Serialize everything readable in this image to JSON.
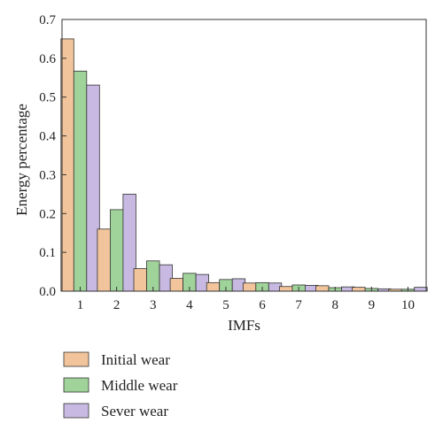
{
  "chart_data": {
    "type": "bar",
    "categories": [
      "1",
      "2",
      "3",
      "4",
      "5",
      "6",
      "7",
      "8",
      "9",
      "10"
    ],
    "series": [
      {
        "name": "Initial wear",
        "color": "#f2c49b",
        "values": [
          0.65,
          0.16,
          0.058,
          0.033,
          0.022,
          0.021,
          0.012,
          0.014,
          0.01,
          0.005
        ]
      },
      {
        "name": "Middle wear",
        "color": "#9fd39a",
        "values": [
          0.567,
          0.21,
          0.078,
          0.046,
          0.03,
          0.022,
          0.016,
          0.009,
          0.007,
          0.005
        ]
      },
      {
        "name": "Sever wear",
        "color": "#c7b9e2",
        "values": [
          0.531,
          0.25,
          0.068,
          0.043,
          0.032,
          0.021,
          0.015,
          0.011,
          0.006,
          0.01
        ]
      }
    ],
    "xlabel": "IMFs",
    "ylabel": "Energy percentage",
    "ylim": [
      0,
      0.7
    ],
    "yticks": [
      "0.0",
      "0.1",
      "0.2",
      "0.3",
      "0.4",
      "0.5",
      "0.6",
      "0.7"
    ],
    "grid": false,
    "legend_position": "bottom-left"
  }
}
